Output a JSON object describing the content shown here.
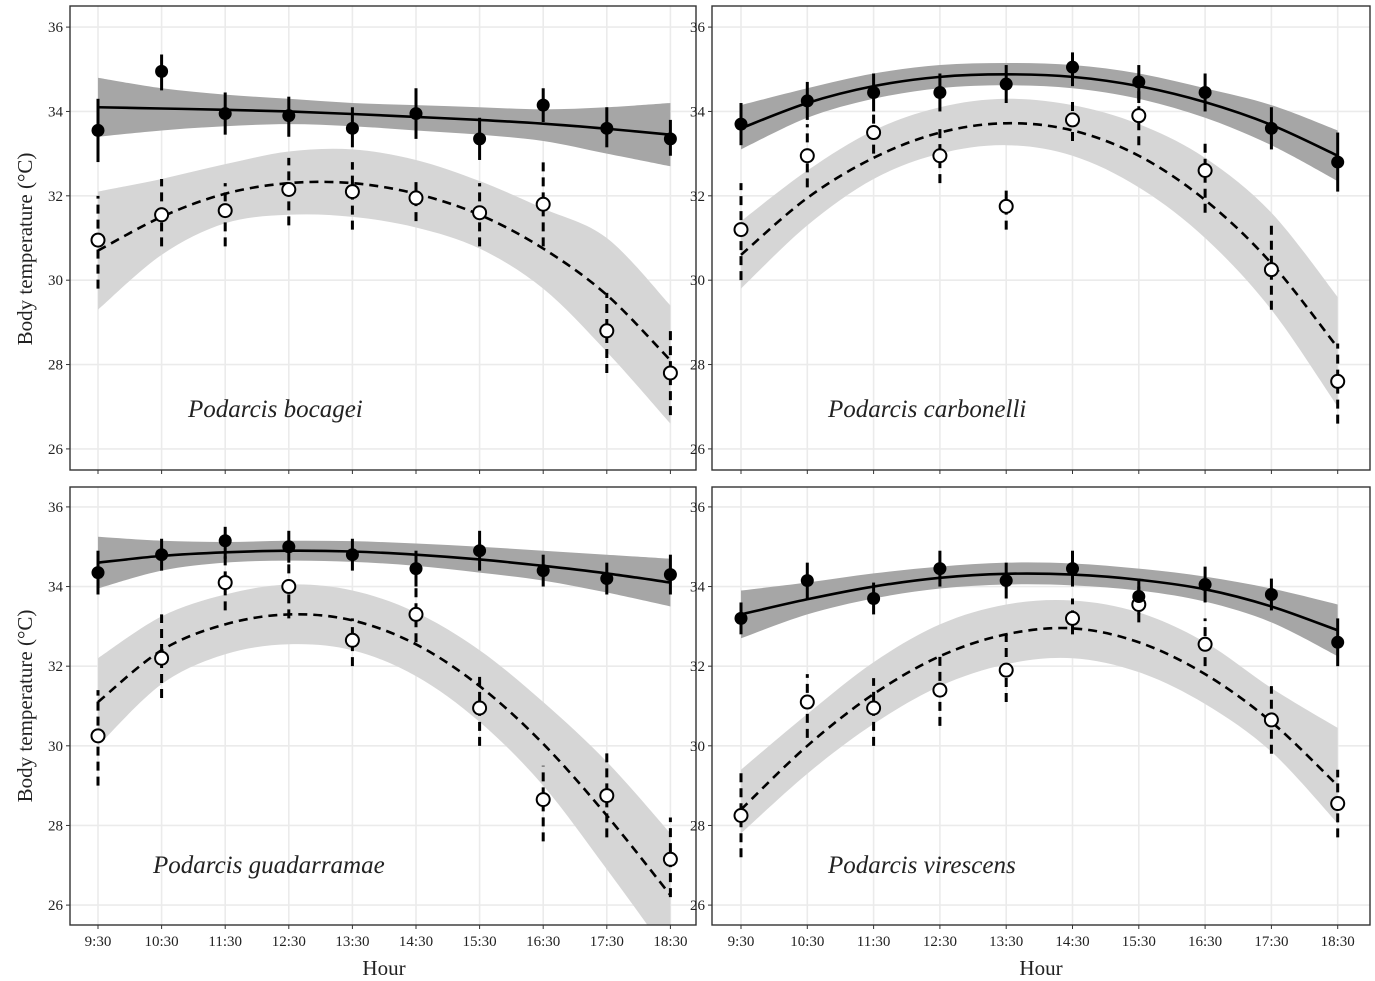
{
  "chart_data": {
    "type": "scatter",
    "layout": "2x2 facets",
    "xlabel": "Hour",
    "ylabel": "Body temperature (°C)",
    "x_categories": [
      "9:30",
      "10:30",
      "11:30",
      "12:30",
      "13:30",
      "14:30",
      "15:30",
      "16:30",
      "17:30",
      "18:30"
    ],
    "ylim": [
      25.5,
      36.5
    ],
    "y_ticks": [
      26,
      28,
      30,
      32,
      34,
      36
    ],
    "grid": true,
    "colors": {
      "filled_series": "#000000",
      "open_series": "#000000",
      "band_filled": "#a6a6a6",
      "band_open": "#d6d6d6",
      "grid": "#ebebeb"
    },
    "panels": [
      {
        "species": "Podarcis bocagei",
        "series": [
          {
            "style": "filled",
            "line": "solid",
            "values": [
              33.55,
              34.95,
              33.95,
              33.9,
              33.6,
              33.95,
              33.35,
              34.15,
              33.6,
              33.35
            ],
            "lower": [
              32.8,
              34.5,
              33.45,
              33.4,
              33.15,
              33.35,
              32.85,
              33.75,
              33.15,
              32.95
            ],
            "upper": [
              34.3,
              35.35,
              34.45,
              34.35,
              34.1,
              34.55,
              33.85,
              34.55,
              34.1,
              33.8
            ],
            "fit": [
              34.1,
              34.07,
              34.04,
              34.0,
              33.94,
              33.87,
              33.8,
              33.71,
              33.59,
              33.45
            ],
            "band_lower": [
              33.4,
              33.55,
              33.65,
              33.7,
              33.65,
              33.55,
              33.45,
              33.3,
              33.0,
              32.7
            ],
            "band_upper": [
              34.8,
              34.55,
              34.4,
              34.3,
              34.2,
              34.15,
              34.1,
              34.05,
              34.1,
              34.2
            ]
          },
          {
            "style": "open",
            "line": "dashed",
            "values": [
              30.95,
              31.55,
              31.65,
              32.15,
              32.1,
              31.95,
              31.6,
              31.8,
              28.8,
              27.8
            ],
            "lower": [
              29.8,
              30.8,
              30.8,
              31.3,
              31.2,
              31.4,
              30.8,
              30.8,
              27.8,
              26.8
            ],
            "upper": [
              32.0,
              32.4,
              32.3,
              32.9,
              32.8,
              32.4,
              32.3,
              32.8,
              29.7,
              28.9
            ],
            "fit": [
              30.7,
              31.5,
              32.05,
              32.3,
              32.3,
              32.05,
              31.55,
              30.75,
              29.65,
              28.1
            ],
            "band_lower": [
              29.3,
              30.6,
              31.35,
              31.55,
              31.5,
              31.25,
              30.75,
              29.8,
              28.3,
              26.6
            ],
            "band_upper": [
              32.1,
              32.4,
              32.75,
              33.05,
              33.1,
              32.85,
              32.35,
              31.7,
              31.0,
              29.4
            ]
          }
        ]
      },
      {
        "species": "Podarcis carbonelli",
        "series": [
          {
            "style": "filled",
            "line": "solid",
            "values": [
              33.7,
              34.25,
              34.45,
              34.45,
              34.65,
              35.05,
              34.7,
              34.45,
              33.6,
              32.8
            ],
            "lower": [
              33.2,
              33.8,
              34.0,
              34.0,
              34.2,
              34.6,
              34.2,
              34.0,
              33.1,
              32.1
            ],
            "upper": [
              34.2,
              34.7,
              34.9,
              34.9,
              35.1,
              35.4,
              35.1,
              34.9,
              34.1,
              33.5
            ],
            "fit": [
              33.6,
              34.2,
              34.6,
              34.82,
              34.88,
              34.82,
              34.6,
              34.22,
              33.68,
              32.95
            ],
            "band_lower": [
              33.1,
              33.85,
              34.3,
              34.55,
              34.62,
              34.55,
              34.3,
              33.85,
              33.2,
              32.35
            ],
            "band_upper": [
              34.15,
              34.55,
              34.9,
              35.1,
              35.15,
              35.1,
              34.9,
              34.55,
              34.15,
              33.55
            ]
          },
          {
            "style": "open",
            "line": "dashed",
            "values": [
              31.2,
              32.95,
              33.5,
              32.95,
              31.75,
              33.8,
              33.9,
              32.6,
              30.25,
              27.6
            ],
            "lower": [
              30.0,
              32.2,
              33.0,
              32.3,
              31.2,
              33.3,
              33.2,
              31.6,
              29.3,
              26.6
            ],
            "upper": [
              32.3,
              33.7,
              34.0,
              33.7,
              32.2,
              34.3,
              34.5,
              33.3,
              31.3,
              28.5
            ],
            "fit": [
              30.6,
              31.95,
              32.9,
              33.5,
              33.72,
              33.55,
              32.95,
              31.9,
              30.4,
              28.4
            ],
            "band_lower": [
              29.8,
              31.3,
              32.4,
              33.0,
              33.2,
              32.95,
              32.2,
              31.0,
              29.3,
              27.0
            ],
            "band_upper": [
              31.4,
              32.6,
              33.55,
              34.1,
              34.3,
              34.15,
              33.7,
              32.9,
              31.6,
              29.6
            ]
          }
        ]
      },
      {
        "species": "Podarcis guadarramae",
        "series": [
          {
            "style": "filled",
            "line": "solid",
            "values": [
              34.35,
              34.8,
              35.15,
              35.0,
              34.8,
              34.45,
              34.9,
              34.4,
              34.2,
              34.3
            ],
            "lower": [
              33.8,
              34.4,
              34.7,
              34.6,
              34.4,
              34.0,
              34.4,
              34.0,
              33.8,
              33.8
            ],
            "upper": [
              34.9,
              35.2,
              35.5,
              35.4,
              35.2,
              34.9,
              35.4,
              34.8,
              34.6,
              34.8
            ],
            "fit": [
              34.6,
              34.77,
              34.86,
              34.9,
              34.88,
              34.8,
              34.68,
              34.52,
              34.33,
              34.1
            ],
            "band_lower": [
              33.95,
              34.4,
              34.6,
              34.65,
              34.62,
              34.52,
              34.35,
              34.15,
              33.85,
              33.5
            ],
            "band_upper": [
              35.25,
              35.15,
              35.12,
              35.15,
              35.14,
              35.08,
              35.0,
              34.9,
              34.8,
              34.7
            ]
          },
          {
            "style": "open",
            "line": "dashed",
            "values": [
              30.25,
              32.2,
              34.1,
              34.0,
              32.65,
              33.3,
              30.95,
              28.65,
              28.75,
              27.15
            ],
            "lower": [
              29.0,
              31.2,
              33.4,
              33.2,
              32.0,
              32.6,
              30.0,
              27.6,
              27.7,
              26.2
            ],
            "upper": [
              31.4,
              33.3,
              34.8,
              34.7,
              33.2,
              34.0,
              31.8,
              29.5,
              29.9,
              28.2
            ],
            "fit": [
              31.1,
              32.4,
              33.05,
              33.3,
              33.15,
              32.55,
              31.5,
              30.05,
              28.25,
              26.25
            ],
            "band_lower": [
              30.0,
              31.55,
              32.3,
              32.55,
              32.4,
              31.75,
              30.6,
              29.0,
              26.9,
              24.7
            ],
            "band_upper": [
              32.2,
              33.25,
              33.8,
              34.05,
              33.9,
              33.35,
              32.4,
              31.1,
              29.6,
              27.8
            ]
          }
        ]
      },
      {
        "species": "Podarcis virescens",
        "series": [
          {
            "style": "filled",
            "line": "solid",
            "values": [
              33.2,
              34.15,
              33.7,
              34.45,
              34.15,
              34.45,
              33.75,
              34.05,
              33.8,
              32.6
            ],
            "lower": [
              32.8,
              33.7,
              33.3,
              34.0,
              33.7,
              34.0,
              33.3,
              33.6,
              33.4,
              32.0
            ],
            "upper": [
              33.6,
              34.6,
              34.1,
              34.9,
              34.6,
              34.9,
              34.2,
              34.5,
              34.2,
              33.2
            ],
            "fit": [
              33.3,
              33.68,
              34.0,
              34.22,
              34.32,
              34.3,
              34.17,
              33.93,
              33.5,
              32.9
            ],
            "band_lower": [
              32.7,
              33.3,
              33.7,
              33.95,
              34.05,
              34.03,
              33.9,
              33.62,
              33.1,
              32.25
            ],
            "band_upper": [
              33.9,
              34.1,
              34.33,
              34.5,
              34.6,
              34.58,
              34.45,
              34.25,
              33.95,
              33.55
            ]
          },
          {
            "style": "open",
            "line": "dashed",
            "values": [
              28.25,
              31.1,
              30.95,
              31.4,
              31.9,
              33.2,
              33.55,
              32.55,
              30.65,
              28.55
            ],
            "lower": [
              27.2,
              30.2,
              30.0,
              30.5,
              31.1,
              32.8,
              33.1,
              32.0,
              29.8,
              27.7
            ],
            "upper": [
              29.4,
              31.8,
              31.7,
              32.3,
              32.8,
              33.7,
              34.0,
              33.2,
              31.5,
              29.4
            ],
            "fit": [
              28.4,
              30.0,
              31.3,
              32.25,
              32.8,
              32.95,
              32.6,
              31.8,
              30.6,
              29.0
            ],
            "band_lower": [
              27.8,
              29.3,
              30.55,
              31.5,
              32.05,
              32.2,
              31.85,
              31.05,
              29.85,
              28.05
            ],
            "band_upper": [
              29.4,
              30.8,
              32.1,
              33.05,
              33.55,
              33.65,
              33.35,
              32.6,
              31.45,
              30.45
            ]
          }
        ]
      }
    ]
  }
}
